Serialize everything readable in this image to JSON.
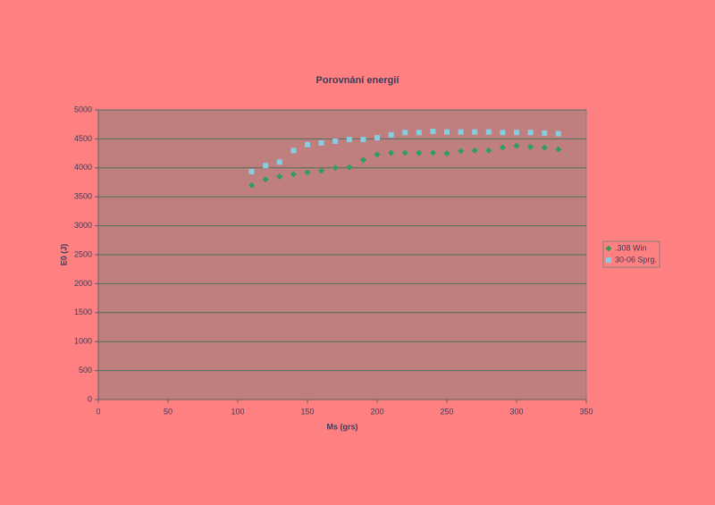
{
  "chart_data": {
    "type": "scatter",
    "title": "Porovnání energií",
    "x_label": "Ms (grs)",
    "y_label": "E0 (J)",
    "x": [
      110,
      120,
      130,
      140,
      150,
      160,
      170,
      180,
      190,
      200,
      210,
      220,
      230,
      240,
      250,
      260,
      270,
      280,
      290,
      300,
      310,
      320,
      330
    ],
    "series": [
      {
        "name": ".308 Win",
        "color": "#2e9e5e",
        "marker": "diamond",
        "values": [
          3700,
          3800,
          3850,
          3890,
          3920,
          3950,
          4000,
          4010,
          4135,
          4230,
          4260,
          4260,
          4260,
          4260,
          4250,
          4290,
          4300,
          4300,
          4350,
          4380,
          4360,
          4350,
          4320
        ]
      },
      {
        "name": "30-06 Sprg.",
        "color": "#86cde0",
        "marker": "square",
        "values": [
          3935,
          4040,
          4100,
          4300,
          4400,
          4430,
          4460,
          4490,
          4490,
          4520,
          4570,
          4610,
          4610,
          4630,
          4620,
          4620,
          4620,
          4620,
          4610,
          4610,
          4610,
          4600,
          4590
        ]
      }
    ],
    "xlim": [
      0,
      350
    ],
    "xticks": [
      0,
      50,
      100,
      150,
      200,
      250,
      300,
      350
    ],
    "ylim": [
      0,
      5000
    ],
    "yticks": [
      0,
      500,
      1000,
      1500,
      2000,
      2500,
      3000,
      3500,
      4000,
      4500,
      5000
    ],
    "grid": true,
    "legend": "right"
  }
}
